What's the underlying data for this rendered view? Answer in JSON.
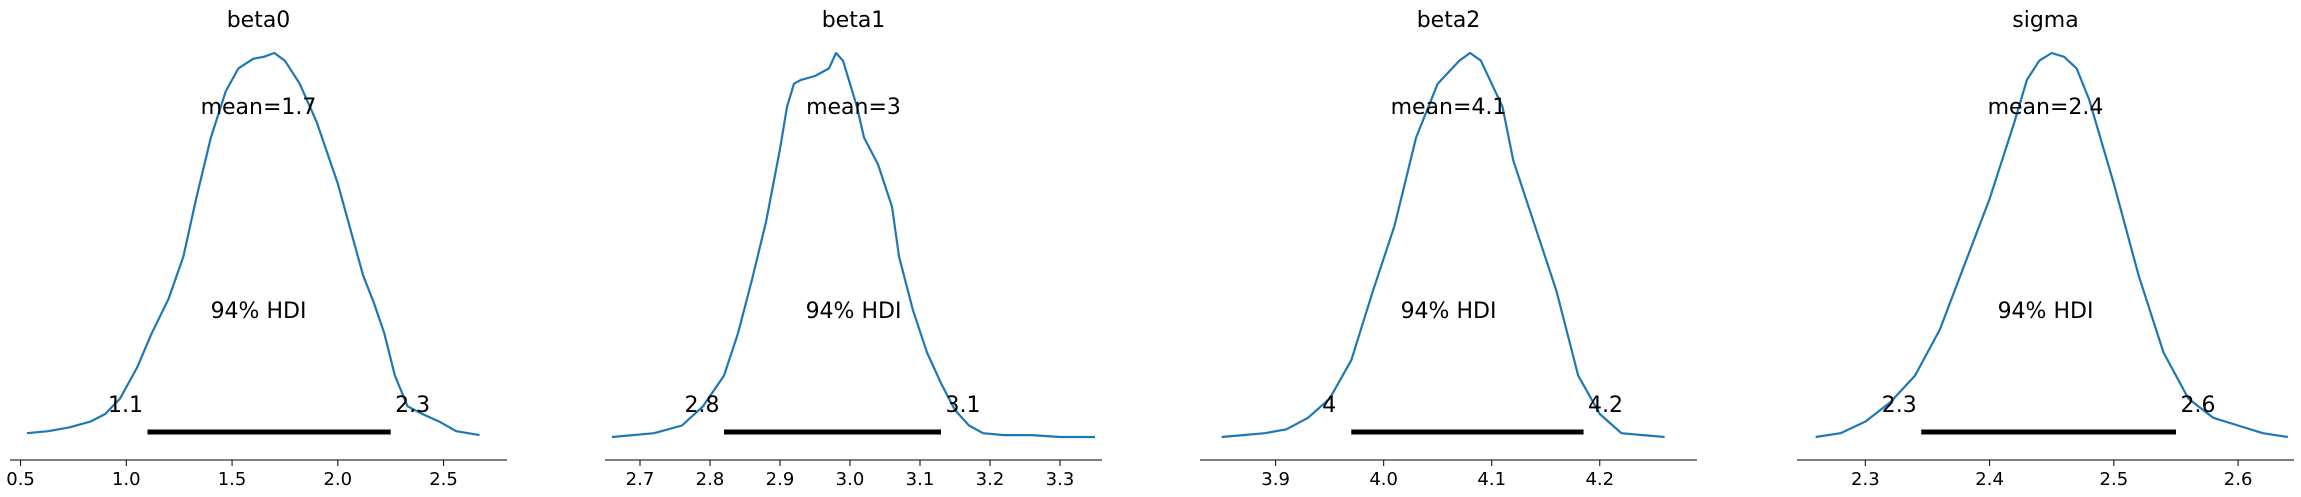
{
  "chart_data": [
    {
      "type": "area",
      "title": "beta0",
      "mean_label": "mean=1.7",
      "hdi_label": "94% HDI",
      "hdi": {
        "low": 1.1,
        "high": 2.25,
        "low_label": "1.1",
        "high_label": "2.3"
      },
      "xlim": [
        0.45,
        2.8
      ],
      "xticks": [
        0.5,
        1.0,
        1.5,
        2.0,
        2.5
      ],
      "xtick_labels": [
        "0.5",
        "1.0",
        "1.5",
        "2.0",
        "2.5"
      ],
      "color": "#1f77b4",
      "density": [
        [
          0.53,
          0.01
        ],
        [
          0.63,
          0.015
        ],
        [
          0.73,
          0.025
        ],
        [
          0.83,
          0.04
        ],
        [
          0.9,
          0.06
        ],
        [
          0.97,
          0.1
        ],
        [
          1.05,
          0.18
        ],
        [
          1.12,
          0.27
        ],
        [
          1.2,
          0.36
        ],
        [
          1.27,
          0.47
        ],
        [
          1.33,
          0.62
        ],
        [
          1.4,
          0.78
        ],
        [
          1.47,
          0.9
        ],
        [
          1.53,
          0.96
        ],
        [
          1.6,
          0.985
        ],
        [
          1.65,
          0.99
        ],
        [
          1.7,
          1.0
        ],
        [
          1.75,
          0.98
        ],
        [
          1.82,
          0.92
        ],
        [
          1.9,
          0.82
        ],
        [
          2.0,
          0.66
        ],
        [
          2.07,
          0.52
        ],
        [
          2.12,
          0.42
        ],
        [
          2.17,
          0.35
        ],
        [
          2.22,
          0.27
        ],
        [
          2.27,
          0.16
        ],
        [
          2.33,
          0.08
        ],
        [
          2.4,
          0.06
        ],
        [
          2.48,
          0.04
        ],
        [
          2.56,
          0.015
        ],
        [
          2.67,
          0.005
        ]
      ]
    },
    {
      "type": "area",
      "title": "beta1",
      "mean_label": "mean=3",
      "hdi_label": "94% HDI",
      "hdi": {
        "low": 2.82,
        "high": 3.13,
        "low_label": "2.8",
        "high_label": "3.1"
      },
      "xlim": [
        2.65,
        3.36
      ],
      "xticks": [
        2.7,
        2.8,
        2.9,
        3.0,
        3.1,
        3.2,
        3.3
      ],
      "xtick_labels": [
        "2.7",
        "2.8",
        "2.9",
        "3.0",
        "3.1",
        "3.2",
        "3.3"
      ],
      "color": "#1f77b4",
      "density": [
        [
          2.66,
          0.0
        ],
        [
          2.69,
          0.005
        ],
        [
          2.72,
          0.01
        ],
        [
          2.76,
          0.03
        ],
        [
          2.79,
          0.08
        ],
        [
          2.82,
          0.16
        ],
        [
          2.84,
          0.27
        ],
        [
          2.86,
          0.41
        ],
        [
          2.88,
          0.56
        ],
        [
          2.9,
          0.75
        ],
        [
          2.91,
          0.86
        ],
        [
          2.92,
          0.92
        ],
        [
          2.93,
          0.93
        ],
        [
          2.95,
          0.94
        ],
        [
          2.97,
          0.96
        ],
        [
          2.98,
          1.0
        ],
        [
          2.99,
          0.98
        ],
        [
          3.01,
          0.86
        ],
        [
          3.02,
          0.78
        ],
        [
          3.04,
          0.71
        ],
        [
          3.06,
          0.6
        ],
        [
          3.07,
          0.47
        ],
        [
          3.09,
          0.33
        ],
        [
          3.11,
          0.22
        ],
        [
          3.13,
          0.14
        ],
        [
          3.15,
          0.07
        ],
        [
          3.17,
          0.03
        ],
        [
          3.19,
          0.01
        ],
        [
          3.22,
          0.005
        ],
        [
          3.26,
          0.005
        ],
        [
          3.3,
          0.0
        ],
        [
          3.35,
          0.0
        ]
      ]
    },
    {
      "type": "area",
      "title": "beta2",
      "mean_label": "mean=4.1",
      "hdi_label": "94% HDI",
      "hdi": {
        "low": 3.97,
        "high": 4.185,
        "low_label": "4",
        "high_label": "4.2"
      },
      "xlim": [
        3.83,
        4.29
      ],
      "xticks": [
        3.9,
        4.0,
        4.1,
        4.2
      ],
      "xtick_labels": [
        "3.9",
        "4.0",
        "4.1",
        "4.2"
      ],
      "color": "#1f77b4",
      "density": [
        [
          3.85,
          0.0
        ],
        [
          3.87,
          0.005
        ],
        [
          3.89,
          0.01
        ],
        [
          3.91,
          0.02
        ],
        [
          3.93,
          0.05
        ],
        [
          3.95,
          0.1
        ],
        [
          3.97,
          0.2
        ],
        [
          3.99,
          0.38
        ],
        [
          4.01,
          0.55
        ],
        [
          4.03,
          0.78
        ],
        [
          4.05,
          0.92
        ],
        [
          4.07,
          0.98
        ],
        [
          4.08,
          1.0
        ],
        [
          4.09,
          0.98
        ],
        [
          4.11,
          0.86
        ],
        [
          4.12,
          0.72
        ],
        [
          4.14,
          0.55
        ],
        [
          4.16,
          0.38
        ],
        [
          4.18,
          0.16
        ],
        [
          4.2,
          0.06
        ],
        [
          4.22,
          0.01
        ],
        [
          4.24,
          0.005
        ],
        [
          4.26,
          0.0
        ]
      ]
    },
    {
      "type": "area",
      "title": "sigma",
      "mean_label": "mean=2.4",
      "hdi_label": "94% HDI",
      "hdi": {
        "low": 2.345,
        "high": 2.55,
        "low_label": "2.3",
        "high_label": "2.6"
      },
      "xlim": [
        2.245,
        2.645
      ],
      "xticks": [
        2.3,
        2.4,
        2.5,
        2.6
      ],
      "xtick_labels": [
        "2.3",
        "2.4",
        "2.5",
        "2.6"
      ],
      "color": "#1f77b4",
      "density": [
        [
          2.26,
          0.0
        ],
        [
          2.28,
          0.01
        ],
        [
          2.3,
          0.04
        ],
        [
          2.32,
          0.09
        ],
        [
          2.34,
          0.16
        ],
        [
          2.36,
          0.28
        ],
        [
          2.38,
          0.45
        ],
        [
          2.4,
          0.62
        ],
        [
          2.42,
          0.82
        ],
        [
          2.43,
          0.93
        ],
        [
          2.44,
          0.98
        ],
        [
          2.45,
          1.0
        ],
        [
          2.46,
          0.99
        ],
        [
          2.47,
          0.96
        ],
        [
          2.48,
          0.88
        ],
        [
          2.5,
          0.66
        ],
        [
          2.52,
          0.42
        ],
        [
          2.54,
          0.22
        ],
        [
          2.56,
          0.1
        ],
        [
          2.58,
          0.05
        ],
        [
          2.6,
          0.03
        ],
        [
          2.62,
          0.01
        ],
        [
          2.64,
          0.0
        ]
      ]
    }
  ]
}
